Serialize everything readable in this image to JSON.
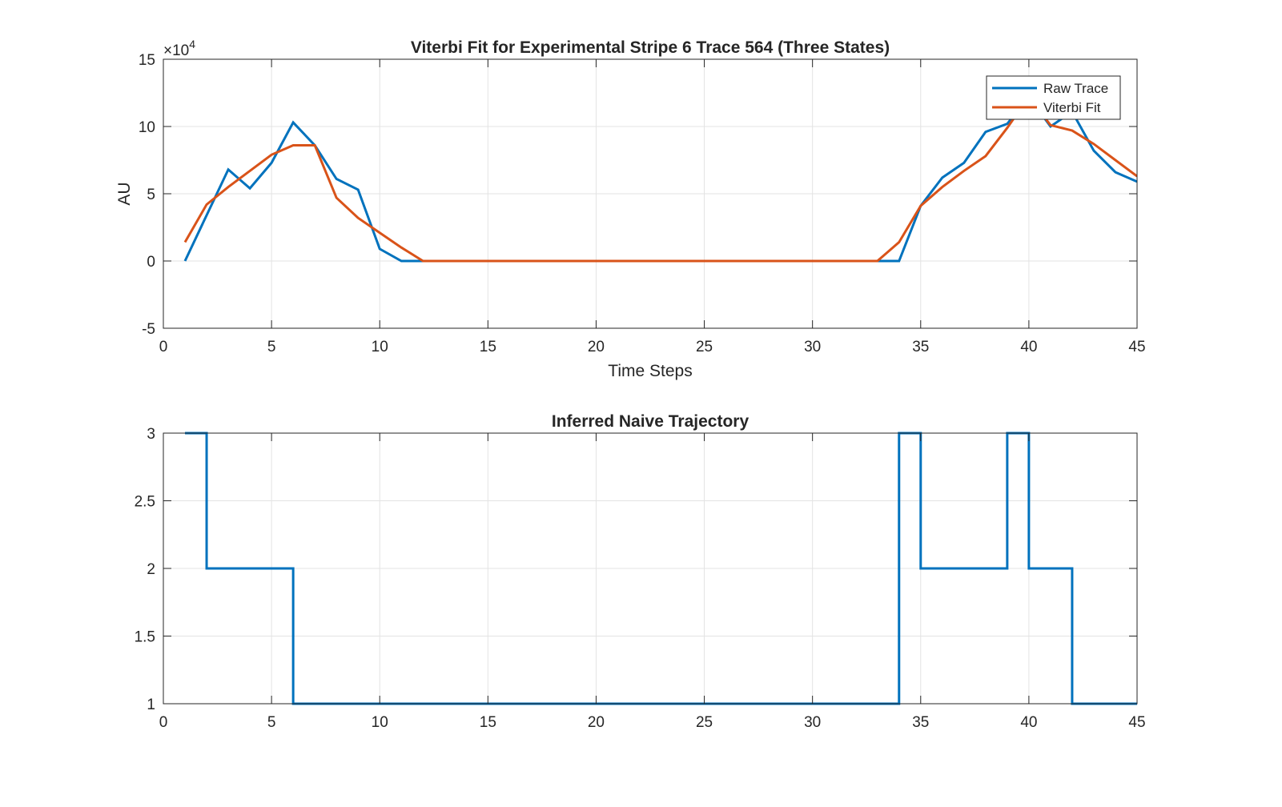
{
  "chart_data": [
    {
      "type": "line",
      "title": "Viterbi Fit for Experimental Stripe 6 Trace 564 (Three States)",
      "xlabel": "Time Steps",
      "ylabel": "AU",
      "y_exponent_label": "×10",
      "y_exponent_power": "4",
      "xlim": [
        0,
        45
      ],
      "ylim": [
        -5,
        15
      ],
      "xticks": [
        "0",
        "5",
        "10",
        "15",
        "20",
        "25",
        "30",
        "35",
        "40",
        "45"
      ],
      "yticks": [
        "-5",
        "0",
        "5",
        "10",
        "15"
      ],
      "grid": true,
      "legend_position": "top-right",
      "series": [
        {
          "name": "Raw Trace",
          "color": "#0072BD",
          "x": [
            1,
            2,
            3,
            4,
            5,
            6,
            7,
            8,
            9,
            10,
            11,
            12,
            13,
            14,
            15,
            16,
            17,
            18,
            19,
            20,
            21,
            22,
            23,
            24,
            25,
            26,
            27,
            28,
            29,
            30,
            31,
            32,
            33,
            34,
            35,
            36,
            37,
            38,
            39,
            40,
            41,
            42,
            43,
            44,
            45
          ],
          "y": [
            0,
            3.4,
            6.8,
            5.4,
            7.3,
            10.3,
            8.6,
            6.1,
            5.3,
            0.9,
            0,
            0,
            0,
            0,
            0,
            0,
            0,
            0,
            0,
            0,
            0,
            0,
            0,
            0,
            0,
            0,
            0,
            0,
            0,
            0,
            0,
            0,
            0,
            0,
            4.1,
            6.2,
            7.3,
            9.6,
            10.2,
            12.2,
            10,
            11.1,
            8.2,
            6.6,
            5.9
          ]
        },
        {
          "name": "Viterbi Fit",
          "color": "#D95319",
          "x": [
            1,
            2,
            3,
            4,
            5,
            6,
            7,
            8,
            9,
            10,
            11,
            12,
            13,
            14,
            15,
            16,
            17,
            18,
            19,
            20,
            21,
            22,
            23,
            24,
            25,
            26,
            27,
            28,
            29,
            30,
            31,
            32,
            33,
            34,
            35,
            36,
            37,
            38,
            39,
            40,
            41,
            42,
            43,
            44,
            45
          ],
          "y": [
            1.4,
            4.2,
            5.5,
            6.7,
            7.9,
            8.6,
            8.6,
            4.7,
            3.2,
            2.1,
            1,
            0,
            0,
            0,
            0,
            0,
            0,
            0,
            0,
            0,
            0,
            0,
            0,
            0,
            0,
            0,
            0,
            0,
            0,
            0,
            0,
            0,
            0,
            1.4,
            4.1,
            5.5,
            6.7,
            7.8,
            9.9,
            12.2,
            10.1,
            9.7,
            8.7,
            7.5,
            6.3
          ]
        }
      ]
    },
    {
      "type": "line",
      "step": true,
      "title": "Inferred Naive Trajectory",
      "xlabel": "",
      "ylabel": "",
      "xlim": [
        0,
        45
      ],
      "ylim": [
        1,
        3
      ],
      "xticks": [
        "0",
        "5",
        "10",
        "15",
        "20",
        "25",
        "30",
        "35",
        "40",
        "45"
      ],
      "yticks": [
        "1",
        "1.5",
        "2",
        "2.5",
        "3"
      ],
      "grid": true,
      "series": [
        {
          "color": "#0072BD",
          "x": [
            1,
            2,
            3,
            4,
            5,
            6,
            7,
            8,
            9,
            10,
            11,
            12,
            13,
            14,
            15,
            16,
            17,
            18,
            19,
            20,
            21,
            22,
            23,
            24,
            25,
            26,
            27,
            28,
            29,
            30,
            31,
            32,
            33,
            34,
            35,
            36,
            37,
            38,
            39,
            40,
            41,
            42,
            43,
            44,
            45
          ],
          "y": [
            3,
            2,
            2,
            2,
            2,
            1,
            1,
            1,
            1,
            1,
            1,
            1,
            1,
            1,
            1,
            1,
            1,
            1,
            1,
            1,
            1,
            1,
            1,
            1,
            1,
            1,
            1,
            1,
            1,
            1,
            1,
            1,
            1,
            3,
            2,
            2,
            2,
            2,
            3,
            2,
            2,
            1,
            1,
            1,
            1
          ]
        }
      ]
    }
  ]
}
